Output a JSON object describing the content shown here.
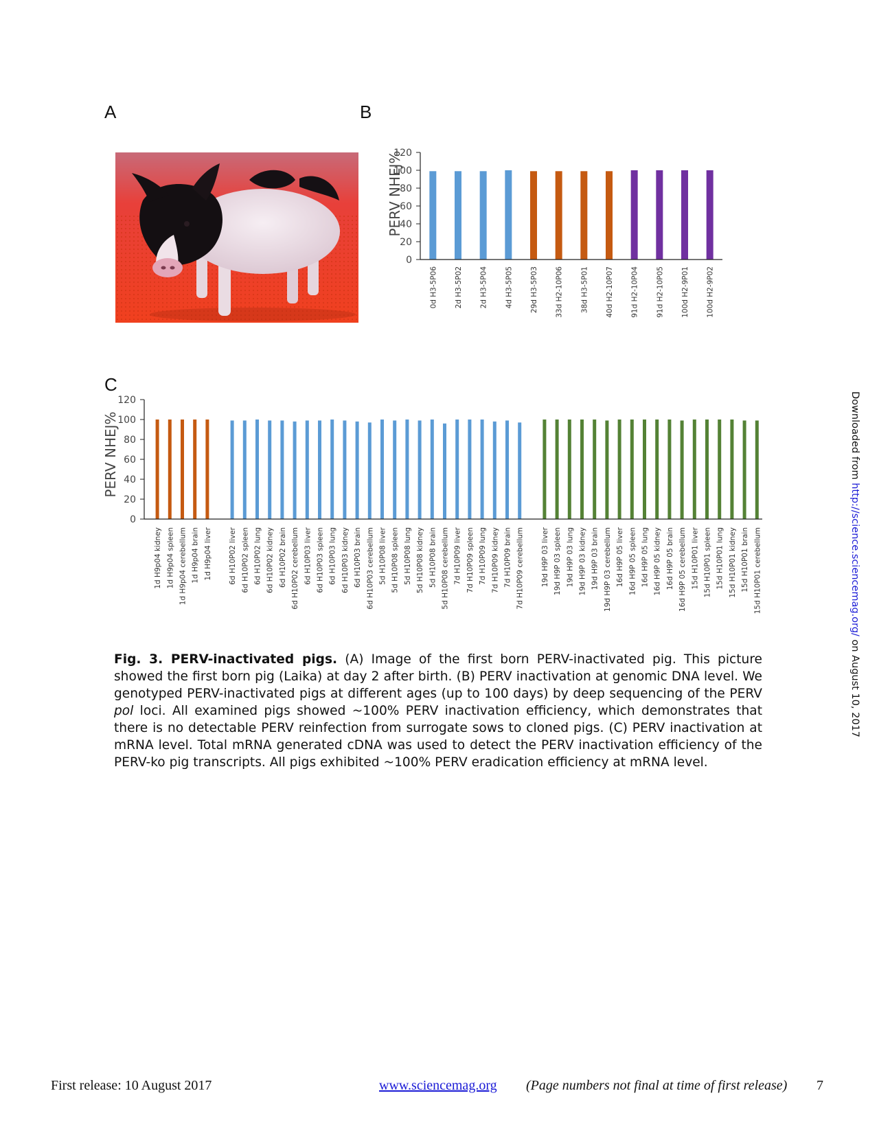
{
  "panels": {
    "a": "A",
    "b": "B",
    "c": "C"
  },
  "caption": {
    "title": "Fig. 3. PERV-inactivated pigs.",
    "body_before_pol": " (A) Image of the first born PERV-inactivated pig. This picture showed the first born pig (Laika) at day 2 after birth. (B) PERV inactivation at genomic DNA level. We genotyped PERV-inactivated pigs at different ages (up to 100 days) by deep sequencing of the PERV ",
    "pol": "pol",
    "body_after_pol": " loci. All examined pigs showed ~100% PERV inactivation efficiency, which demonstrates that there is no detectable PERV reinfection from surrogate sows to cloned pigs. (C) PERV inactivation at mRNA level. Total mRNA generated cDNA was used to detect the PERV inactivation efficiency of the PERV-ko pig transcripts. All pigs exhibited ~100% PERV eradication efficiency at mRNA level."
  },
  "side_note": {
    "prefix": "Downloaded from ",
    "link": "http://science.sciencemag.org/",
    "suffix": " on August 10, 2017"
  },
  "footer": {
    "left": "First release: 10 August 2017",
    "link": "www.sciencemag.org",
    "note": "(Page numbers not final at time of first release)",
    "page": "7"
  },
  "colors": {
    "blue": "#5b9bd5",
    "orange": "#c55a11",
    "purple": "#7030a0",
    "green": "#548235"
  },
  "chart_data": [
    {
      "type": "bar",
      "panel": "B",
      "ylabel": "PERV NHEJ%",
      "ylim": [
        0,
        120
      ],
      "yticks": [
        0,
        20,
        40,
        60,
        80,
        100,
        120
      ],
      "categories": [
        "0d H3-5P06",
        "2d H3-5P02",
        "2d H3-5P04",
        "4d H3-5P05",
        "29d H3-5P03",
        "33d H2-10P06",
        "38d H3-5P01",
        "40d H2-10P07",
        "91d H2-10P04",
        "91d H2-10P05",
        "100d H2-9P01",
        "100d H2-9P02"
      ],
      "values": [
        99,
        99,
        99,
        100,
        99,
        99,
        99,
        99,
        100,
        100,
        100,
        100
      ],
      "bar_colors": [
        "blue",
        "blue",
        "blue",
        "blue",
        "orange",
        "orange",
        "orange",
        "orange",
        "purple",
        "purple",
        "purple",
        "purple"
      ]
    },
    {
      "type": "bar",
      "panel": "C",
      "ylabel": "PERV NHEJ%",
      "ylim": [
        0,
        120
      ],
      "yticks": [
        0,
        20,
        40,
        60,
        80,
        100,
        120
      ],
      "groups": [
        {
          "color": "orange",
          "categories": [
            "1d H9p04 kidney",
            "1d H9p04 spleen",
            "1d H9p04 cerebellum",
            "1d H9p04 brain",
            "1d H9p04 liver"
          ],
          "values": [
            100,
            100,
            100,
            100,
            100
          ]
        },
        {
          "color": "blue",
          "categories": [
            "6d H10P02 liver",
            "6d H10P02 spleen",
            "6d H10P02 lung",
            "6d H10P02 kidney",
            "6d H10P02 brain",
            "6d H10P02 cerebellum",
            "6d H10P03 liver",
            "6d H10P03 spleen",
            "6d H10P03 lung",
            "6d H10P03 kidney",
            "6d H10P03 brain",
            "6d H10P03 cerebellum",
            "5d H10P08 liver",
            "5d H10P08 spleen",
            "5d H10P08 lung",
            "5d H10P08 kidney",
            "5d H10P08 brain",
            "5d H10P08 cerebellum",
            "7d H10P09 liver",
            "7d H10P09 spleen",
            "7d H10P09 lung",
            "7d H10P09 kidney",
            "7d H10P09 brain",
            "7d H10P09 cerebellum"
          ],
          "values": [
            99,
            99,
            100,
            99,
            99,
            98,
            99,
            99,
            100,
            99,
            98,
            97,
            100,
            99,
            100,
            99,
            100,
            96,
            100,
            100,
            100,
            98,
            99,
            97
          ]
        },
        {
          "color": "green",
          "categories": [
            "19d H9P 03 liver",
            "19d H9P 03 spleen",
            "19d H9P 03 lung",
            "19d H9P 03 kidney",
            "19d H9P 03 brain",
            "19d H9P 03 cerebellum",
            "16d H9P 05 liver",
            "16d H9P 05 spleen",
            "16d H9P 05 lung",
            "16d H9P 05 kidney",
            "16d H9P 05 brain",
            "16d H9P 05 cerebellum",
            "15d H10P01 liver",
            "15d H10P01 spleen",
            "15d H10P01 lung",
            "15d H10P01 kidney",
            "15d H10P01 brain",
            "15d H10P01 cerebellum"
          ],
          "values": [
            100,
            100,
            100,
            100,
            100,
            99,
            100,
            100,
            100,
            100,
            100,
            99,
            100,
            100,
            100,
            100,
            99,
            99
          ]
        }
      ]
    }
  ]
}
